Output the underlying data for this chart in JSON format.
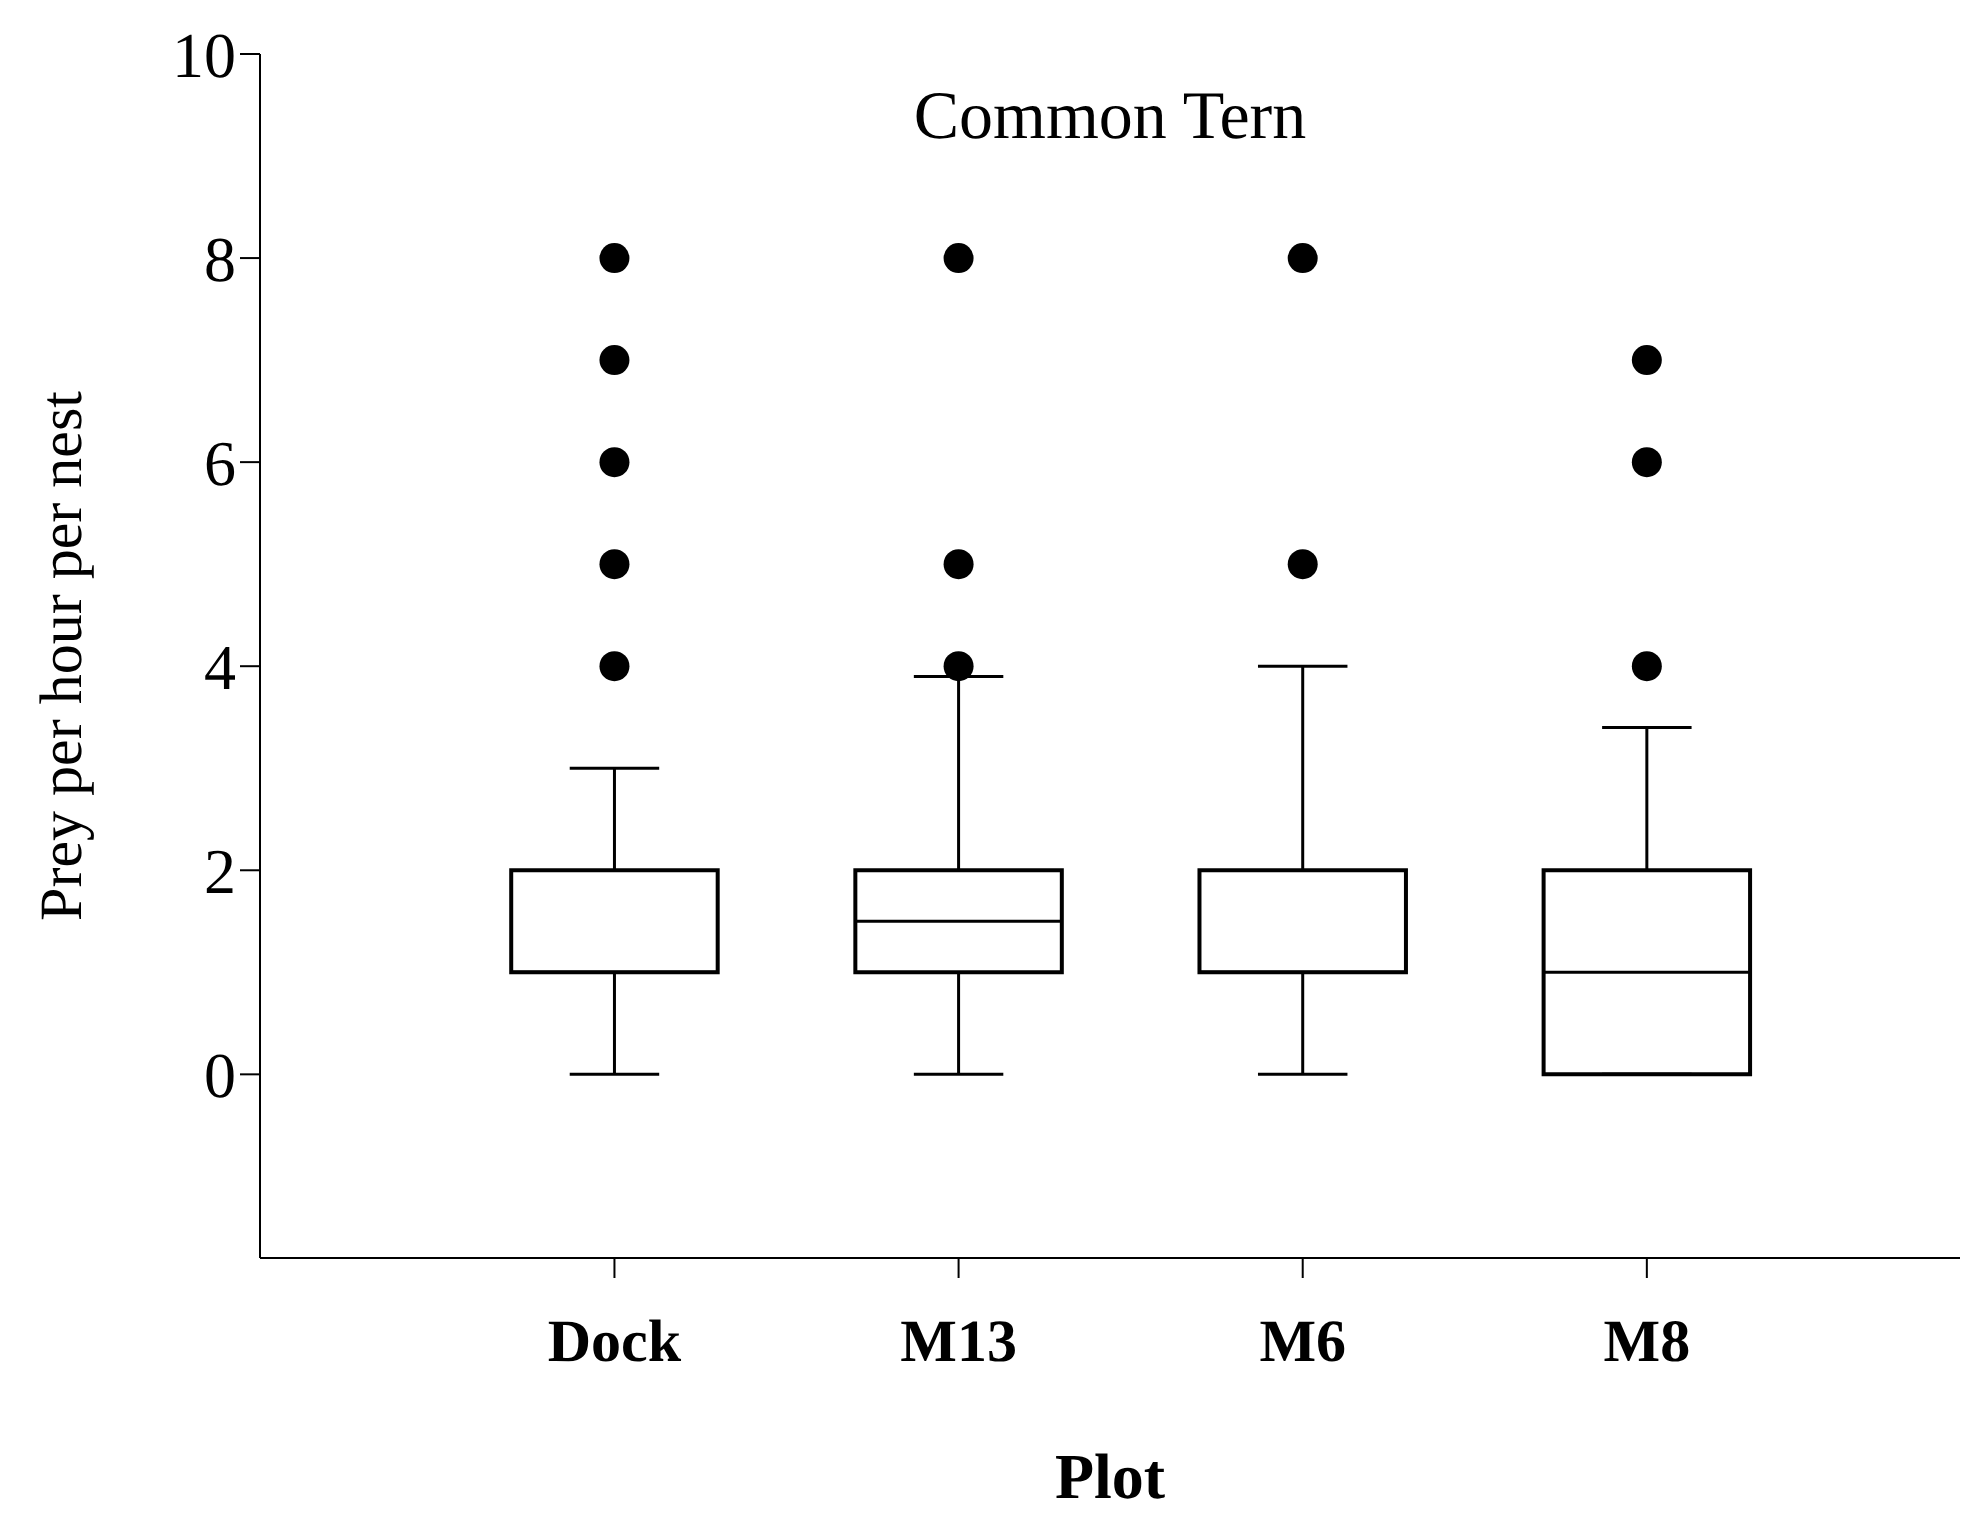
{
  "chart_data": {
    "type": "box",
    "title": "Common Tern",
    "xlabel": "Plot",
    "ylabel": "Prey per hour per nest",
    "categories": [
      "Dock",
      "M13",
      "M6",
      "M8"
    ],
    "boxes": [
      {
        "low": 0,
        "q1": 1,
        "median": 1,
        "q3": 2,
        "high": 3,
        "outliers": [
          4,
          5,
          6,
          7,
          8
        ]
      },
      {
        "low": 0,
        "q1": 1,
        "median": 1.5,
        "q3": 2,
        "high": 3.9,
        "outliers": [
          4,
          5,
          8
        ]
      },
      {
        "low": 0,
        "q1": 1,
        "median": 1,
        "q3": 2,
        "high": 4,
        "outliers": [
          5,
          8
        ]
      },
      {
        "low": 0,
        "q1": 0,
        "median": 1,
        "q3": 2,
        "high": 3.4,
        "outliers": [
          4,
          6,
          7
        ]
      }
    ],
    "color": "#000000",
    "ylim": [
      -1.8,
      10
    ],
    "yticks": [
      0,
      2,
      4,
      6,
      8,
      10
    ],
    "grid": false,
    "legend": false
  }
}
